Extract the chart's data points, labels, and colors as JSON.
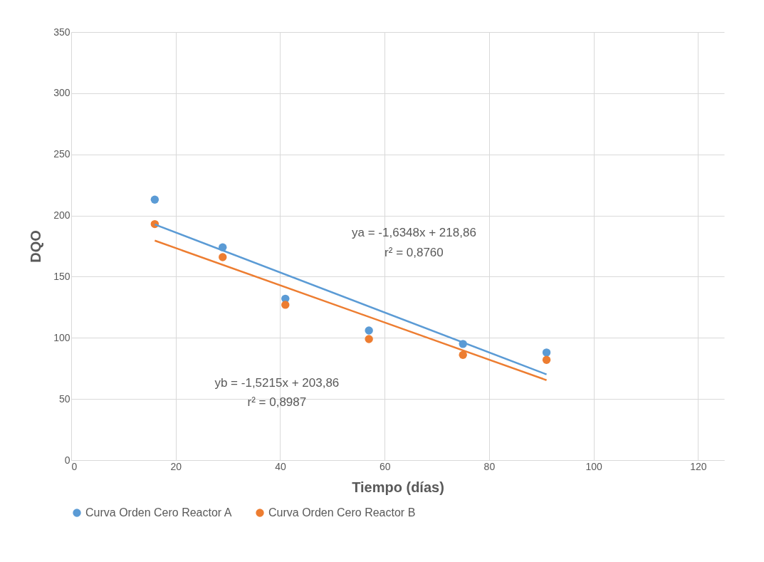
{
  "chart_data": {
    "type": "scatter",
    "xlabel": "Tiempo (días)",
    "ylabel": "DQO",
    "xlim": [
      0,
      125
    ],
    "xticks": [
      0,
      20,
      40,
      60,
      80,
      100,
      120
    ],
    "ylim": [
      0,
      350
    ],
    "yticks": [
      0,
      50,
      100,
      150,
      200,
      250,
      300,
      350
    ],
    "grid": true,
    "legend": "bottom",
    "annotations": [
      "ya = -1,6348x + 218,86",
      "r² = 0,8760",
      "yb = -1,5215x + 203,86",
      "r² = 0,8987"
    ],
    "series": [
      {
        "name": "Curva Orden Cero Reactor A",
        "color": "#5b9bd5",
        "marker": "circle",
        "x": [
          16,
          29,
          41,
          57,
          75,
          91
        ],
        "values": [
          213,
          174,
          132,
          106,
          95,
          88
        ]
      },
      {
        "name": "Curva Orden Cero Reactor B",
        "color": "#ed7d31",
        "marker": "circle",
        "x": [
          16,
          29,
          41,
          57,
          75,
          91
        ],
        "values": [
          193,
          166,
          127,
          99,
          86,
          82
        ]
      },
      {
        "type": "line",
        "color": "#5b9bd5",
        "marker": "none",
        "x": [
          16,
          91
        ],
        "values": [
          192.7,
          70.1
        ]
      },
      {
        "type": "line",
        "color": "#ed7d31",
        "marker": "none",
        "x": [
          16,
          91
        ],
        "values": [
          179.5,
          65.4
        ]
      }
    ]
  }
}
